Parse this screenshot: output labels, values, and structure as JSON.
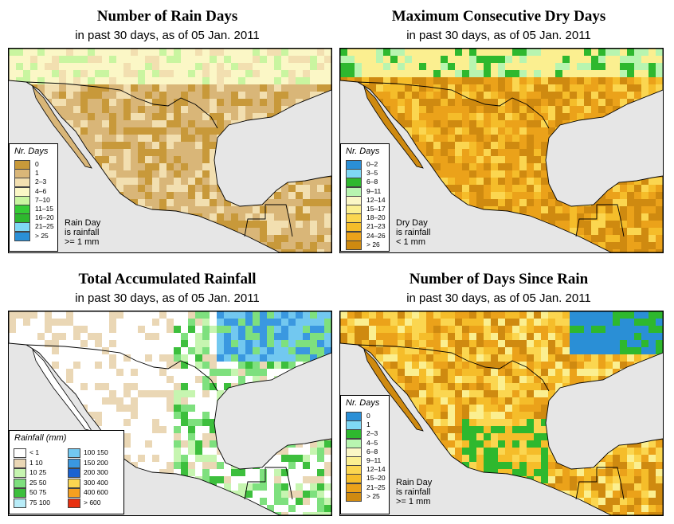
{
  "panels": [
    {
      "title": "Number of Rain Days",
      "subtitle": "in past 30 days, as of  05 Jan. 2011",
      "legend": {
        "header": "Nr. Days",
        "items": [
          {
            "label": "0",
            "color": "#c8993a"
          },
          {
            "label": "1",
            "color": "#d9b678"
          },
          {
            "label": "2–3",
            "color": "#f2dfb0"
          },
          {
            "label": "4–6",
            "color": "#fbf7c6"
          },
          {
            "label": "7–10",
            "color": "#c9f5a0"
          },
          {
            "label": "11–15",
            "color": "#35cc35"
          },
          {
            "label": "16–20",
            "color": "#2eb82e"
          },
          {
            "label": "21–25",
            "color": "#7fd8f5"
          },
          {
            "label": "> 25",
            "color": "#2a8fd6"
          }
        ]
      },
      "note": [
        "Rain Day",
        "is rainfall",
        ">= 1 mm"
      ]
    },
    {
      "title": "Maximum Consecutive Dry Days",
      "subtitle": "in past 30 days, as of  05 Jan. 2011",
      "legend": {
        "header": "Nr. Days",
        "items": [
          {
            "label": "0–2",
            "color": "#2a8fd6"
          },
          {
            "label": "3–5",
            "color": "#7fd8f5"
          },
          {
            "label": "6–8",
            "color": "#2eb82e"
          },
          {
            "label": "9–11",
            "color": "#b8f5b0"
          },
          {
            "label": "12–14",
            "color": "#fbf7c6"
          },
          {
            "label": "15–17",
            "color": "#fbef90"
          },
          {
            "label": "18–20",
            "color": "#fbd650"
          },
          {
            "label": "21–23",
            "color": "#f5bd2a"
          },
          {
            "label": "24–26",
            "color": "#eba21a"
          },
          {
            "label": "> 26",
            "color": "#cf8a10"
          }
        ]
      },
      "note": [
        "Dry Day",
        "is rainfall",
        "< 1 mm"
      ]
    },
    {
      "title": "Total Accumulated Rainfall",
      "subtitle": "in past 30 days, as of  05 Jan. 2011",
      "legend": {
        "header": "Rainfall (mm)",
        "left": [
          {
            "label": "< 1",
            "color": "#ffffff"
          },
          {
            "label": "1   10",
            "color": "#ead7b5"
          },
          {
            "label": "10   25",
            "color": "#c6f5b0"
          },
          {
            "label": "25   50",
            "color": "#7ee07e"
          },
          {
            "label": "50   75",
            "color": "#3dbf3d"
          },
          {
            "label": "75   100",
            "color": "#b8ecf8"
          }
        ],
        "right": [
          {
            "label": "100   150",
            "color": "#72c8f0"
          },
          {
            "label": "150   200",
            "color": "#3a98e0"
          },
          {
            "label": "200   300",
            "color": "#1a62d0"
          },
          {
            "label": "300   400",
            "color": "#fbd650"
          },
          {
            "label": "400   600",
            "color": "#f5a020"
          },
          {
            "label": "> 600",
            "color": "#e83010"
          }
        ]
      }
    },
    {
      "title": "Number of Days Since Rain",
      "subtitle": "in past 30 days, as of  05 Jan. 2011",
      "legend": {
        "header": "Nr. Days",
        "items": [
          {
            "label": "0",
            "color": "#2a8fd6"
          },
          {
            "label": "1",
            "color": "#7fd8f5"
          },
          {
            "label": "2–3",
            "color": "#2eb82e"
          },
          {
            "label": "4–5",
            "color": "#b8f5b0"
          },
          {
            "label": "6–8",
            "color": "#fbf7c6"
          },
          {
            "label": "9–11",
            "color": "#fbef90"
          },
          {
            "label": "12–14",
            "color": "#fbd650"
          },
          {
            "label": "15–20",
            "color": "#f5bd2a"
          },
          {
            "label": "21–25",
            "color": "#eba21a"
          },
          {
            "label": "> 25",
            "color": "#cf8a10"
          }
        ]
      },
      "note": [
        "Rain Day",
        "is rainfall",
        ">= 1 mm"
      ]
    }
  ],
  "colors": {
    "ocean": "#e6e6e6",
    "border": "#000000"
  }
}
